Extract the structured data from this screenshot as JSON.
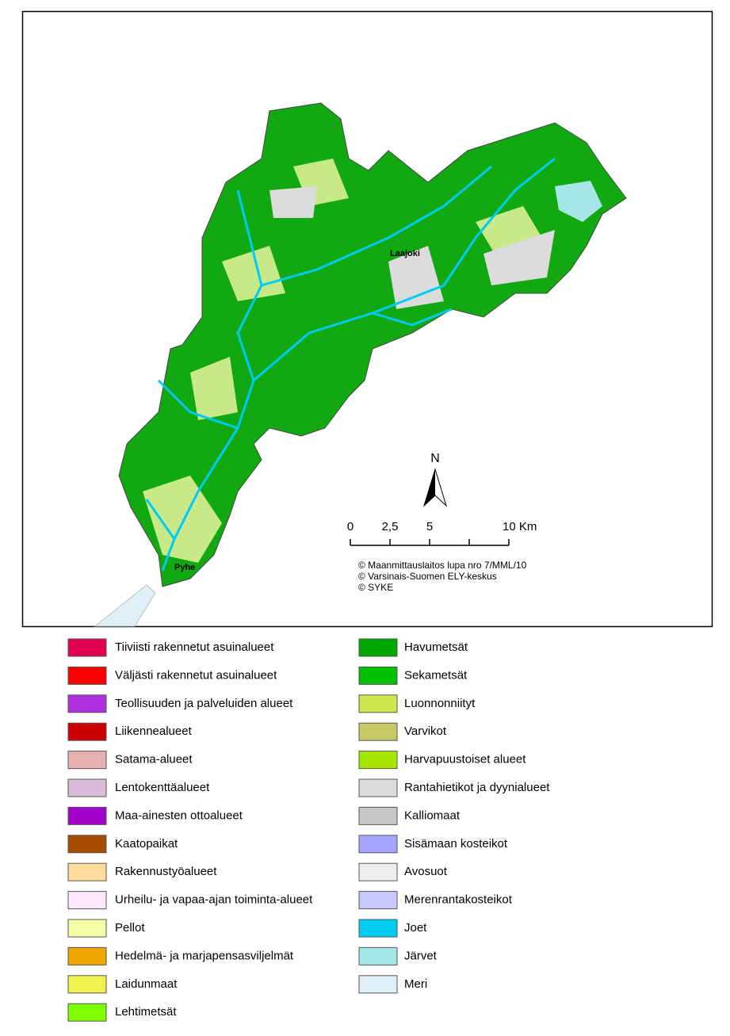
{
  "map": {
    "places": [
      "Laajoki",
      "Pyhe"
    ],
    "north": "N",
    "scale": [
      "0",
      "2,5",
      "5",
      "10 Km"
    ],
    "credits": [
      "© Maanmittauslaitos lupa nro 7/MML/10",
      "© Varsinais-Suomen ELY-keskus",
      "© SYKE"
    ]
  },
  "legend": {
    "left": [
      {
        "label": "Tiiviisti rakennetut asuinalueet",
        "color": "#e0004f"
      },
      {
        "label": "Väljästi rakennetut asuinalueet",
        "color": "#ff0000"
      },
      {
        "label": "Teollisuuden ja palveluiden alueet",
        "color": "#b030e0"
      },
      {
        "label": "Liikennealueet",
        "color": "#cc0000"
      },
      {
        "label": "Satama-alueet",
        "color": "#e6b0b0"
      },
      {
        "label": "Lentokenttäalueet",
        "color": "#d8bcd8"
      },
      {
        "label": "Maa-ainesten ottoalueet",
        "color": "#a000c8"
      },
      {
        "label": "Kaatopaikat",
        "color": "#a64d00"
      },
      {
        "label": "Rakennustyöalueet",
        "color": "#ffdc9c"
      },
      {
        "label": "Urheilu- ja vapaa-ajan toiminta-alueet",
        "color": "#ffe6ff"
      },
      {
        "label": "Pellot",
        "color": "#f5ffa6"
      },
      {
        "label": "Hedelmä- ja marjapensasviljelmät",
        "color": "#f0a600"
      },
      {
        "label": "Laidunmaat",
        "color": "#f0f04e"
      },
      {
        "label": "Lehtimetsät",
        "color": "#80ff00"
      }
    ],
    "right": [
      {
        "label": "Havumetsät",
        "color": "#00a600"
      },
      {
        "label": "Sekametsät",
        "color": "#00c000"
      },
      {
        "label": "Luonnonniityt",
        "color": "#cce64e"
      },
      {
        "label": "Varvikot",
        "color": "#c8c864"
      },
      {
        "label": "Harvapuustoiset alueet",
        "color": "#a6e600"
      },
      {
        "label": "Rantahietikot ja dyynialueet",
        "color": "#dcdcdc"
      },
      {
        "label": "Kalliomaat",
        "color": "#c8c8c8"
      },
      {
        "label": "Sisämaan kosteikot",
        "color": "#a6a6ff"
      },
      {
        "label": "Avosuot",
        "color": "#eeeeee"
      },
      {
        "label": "Merenrantakosteikot",
        "color": "#c8c8ff"
      },
      {
        "label": "Joet",
        "color": "#00ccf2"
      },
      {
        "label": "Järvet",
        "color": "#a6e6e6"
      },
      {
        "label": "Meri",
        "color": "#e0f0fa"
      }
    ]
  }
}
